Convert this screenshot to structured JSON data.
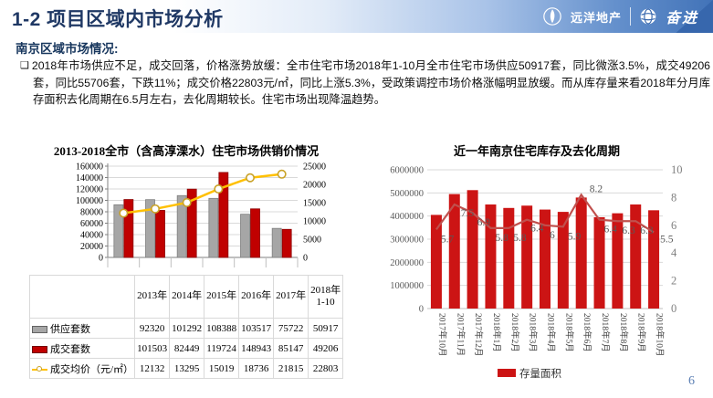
{
  "header": {
    "title": "1-2 项目区域内市场分析",
    "logo_primary": "远洋地产",
    "logo_secondary": "奋进"
  },
  "section": {
    "heading": "南京区域市场情况:",
    "bullet": "❑",
    "paragraph": "2018年市场供应不足，成交回落，价格涨势放缓：全市住宅市场2018年1-10月全市住宅市场供应50917套，同比微涨3.5%，成交49206套，同比55706套，下跌11%；成交价格22803元/㎡，同比上涨5.3%，受政策调控市场价格涨幅明显放缓。而从库存量来看2018年分月库存面积去化周期在6.5月左右，去化周期较长。住宅市场出现降温趋势。"
  },
  "page_number": "6",
  "chart_data": [
    {
      "type": "bar",
      "subtype": "combo-bar-line-with-table",
      "title": "2013-2018全市（含高淳溧水）住宅市场供销价情况",
      "categories": [
        "2013年",
        "2014年",
        "2015年",
        "2016年",
        "2017年",
        "2018年1-10"
      ],
      "series": [
        {
          "name": "供应套数",
          "type": "bar",
          "axis": "left",
          "color": "#a6a6a6",
          "border": "#7f7f7f",
          "values": [
            92320,
            101292,
            108388,
            103517,
            75722,
            50917
          ]
        },
        {
          "name": "成交套数",
          "type": "bar",
          "axis": "left",
          "color": "#c00000",
          "border": "#8c0000",
          "values": [
            101503,
            82449,
            119724,
            148943,
            85147,
            49206
          ]
        },
        {
          "name": "成交均价（元/㎡）",
          "type": "line",
          "axis": "right",
          "color": "#ffc000",
          "marker": "circle-white",
          "values": [
            12132,
            13295,
            15019,
            18736,
            21815,
            22803
          ]
        }
      ],
      "left_axis": {
        "min": 0,
        "max": 160000,
        "step": 20000
      },
      "right_axis": {
        "min": 0,
        "max": 25000,
        "step": 5000
      },
      "legend_position": "table-left-column",
      "grid": true
    },
    {
      "type": "bar",
      "subtype": "combo-bar-line",
      "title": "近一年南京住宅库存及去化周期",
      "categories": [
        "2017年10月",
        "2017年11月",
        "2017年12月",
        "2018年1月",
        "2018年2月",
        "2018年3月",
        "2018年4月",
        "2018年5月",
        "2018年6月",
        "2018年7月",
        "2018年8月",
        "2018年9月",
        "2018年10月"
      ],
      "series": [
        {
          "name": "存量面积",
          "type": "bar",
          "axis": "left",
          "color": "#cc1414",
          "values": [
            4050000,
            4950000,
            5120000,
            4500000,
            4350000,
            4450000,
            4280000,
            4180000,
            4800000,
            3950000,
            4120000,
            4500000,
            4250000
          ]
        },
        {
          "name": "去化周期",
          "type": "line",
          "axis": "right",
          "color": "#c0504d",
          "show_labels": true,
          "values": [
            5.7,
            7.5,
            6.9,
            5.8,
            5.8,
            6.4,
            6,
            5.9,
            8.2,
            6.4,
            6.3,
            6.3,
            5.5
          ]
        }
      ],
      "left_axis": {
        "min": 0,
        "max": 6000000,
        "step": 1000000
      },
      "right_axis": {
        "min": 0,
        "max": 10,
        "step": 2
      },
      "x_labels": "vertical",
      "legend": [
        "存量面积"
      ],
      "legend_position": "bottom-center",
      "grid": true
    }
  ]
}
